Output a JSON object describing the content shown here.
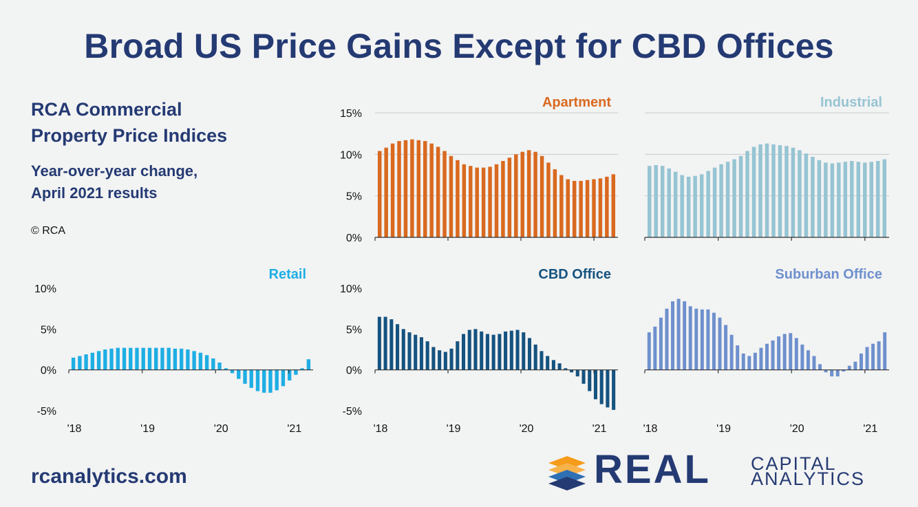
{
  "title": "Broad US Price Gains Except for CBD Offices",
  "subtitle": [
    "RCA Commercial",
    "Property Price Indices"
  ],
  "caption": [
    "Year-over-year change,",
    "April 2021 results"
  ],
  "copyright": "© RCA",
  "website": "rcanalytics.com",
  "logo": {
    "word": "REAL",
    "line1": "CAPITAL",
    "line2": "ANALYTICS",
    "colors": [
      "#f59c1a",
      "#243a73"
    ]
  },
  "chart_data": [
    {
      "type": "bar",
      "title": "Apartment",
      "color": "#d9691f",
      "x_tick_labels": [],
      "y_tick_labels": [
        "0%",
        "5%",
        "10%",
        "15%"
      ],
      "ylim": [
        0,
        15
      ],
      "grid": true,
      "values": [
        10.4,
        10.8,
        11.3,
        11.6,
        11.7,
        11.8,
        11.7,
        11.6,
        11.3,
        10.9,
        10.4,
        9.8,
        9.3,
        8.8,
        8.6,
        8.4,
        8.4,
        8.5,
        8.8,
        9.2,
        9.6,
        10.0,
        10.3,
        10.5,
        10.3,
        9.8,
        9.0,
        8.2,
        7.5,
        7.0,
        6.8,
        6.8,
        6.9,
        7.0,
        7.1,
        7.3,
        7.6
      ]
    },
    {
      "type": "bar",
      "title": "Industrial",
      "color": "#96c4d3",
      "x_tick_labels": [],
      "y_tick_labels": [],
      "ylim": [
        0,
        15
      ],
      "grid": true,
      "values": [
        8.6,
        8.7,
        8.6,
        8.3,
        7.9,
        7.5,
        7.3,
        7.4,
        7.6,
        8.0,
        8.4,
        8.8,
        9.1,
        9.4,
        9.8,
        10.4,
        10.9,
        11.2,
        11.3,
        11.2,
        11.1,
        11.0,
        10.8,
        10.5,
        10.1,
        9.7,
        9.3,
        9.0,
        8.9,
        9.0,
        9.1,
        9.2,
        9.1,
        9.0,
        9.1,
        9.2,
        9.4
      ]
    },
    {
      "type": "bar",
      "title": "Retail",
      "color": "#1eaee4",
      "x_tick_labels": [
        "'18",
        "'19",
        "'20",
        "'21"
      ],
      "y_tick_labels": [
        "-5%",
        "0%",
        "5%",
        "10%"
      ],
      "ylim": [
        -5,
        10
      ],
      "grid": false,
      "values": [
        1.5,
        1.7,
        1.9,
        2.1,
        2.3,
        2.5,
        2.6,
        2.7,
        2.7,
        2.7,
        2.7,
        2.7,
        2.7,
        2.7,
        2.7,
        2.7,
        2.6,
        2.6,
        2.5,
        2.3,
        2.1,
        1.8,
        1.4,
        0.9,
        0.2,
        -0.4,
        -1.1,
        -1.7,
        -2.2,
        -2.6,
        -2.8,
        -2.8,
        -2.5,
        -2.0,
        -1.3,
        -0.6,
        0.2,
        1.3
      ]
    },
    {
      "type": "bar",
      "title": "CBD Office",
      "color": "#155380",
      "x_tick_labels": [
        "'18",
        "'19",
        "'20",
        "'21"
      ],
      "y_tick_labels": [
        "-5%",
        "0%",
        "5%",
        "10%"
      ],
      "ylim": [
        -5,
        10
      ],
      "grid": false,
      "values": [
        6.5,
        6.5,
        6.2,
        5.6,
        5.0,
        4.6,
        4.3,
        4.0,
        3.5,
        2.8,
        2.4,
        2.2,
        2.6,
        3.5,
        4.4,
        4.9,
        5.0,
        4.7,
        4.4,
        4.3,
        4.4,
        4.7,
        4.8,
        4.9,
        4.6,
        3.9,
        3.1,
        2.3,
        1.7,
        1.2,
        0.8,
        0.2,
        -0.3,
        -0.8,
        -1.7,
        -2.6,
        -3.6,
        -4.2,
        -4.6,
        -4.9
      ]
    },
    {
      "type": "bar",
      "title": "Suburban Office",
      "color": "#6e90cd",
      "x_tick_labels": [
        "'18",
        "'19",
        "'20",
        "'21"
      ],
      "y_tick_labels": [],
      "ylim": [
        -5,
        10
      ],
      "grid": false,
      "values": [
        4.6,
        5.3,
        6.4,
        7.5,
        8.4,
        8.7,
        8.4,
        7.8,
        7.5,
        7.4,
        7.4,
        7.0,
        6.4,
        5.5,
        4.3,
        3.0,
        2.0,
        1.7,
        2.1,
        2.7,
        3.2,
        3.6,
        4.1,
        4.4,
        4.5,
        3.9,
        3.1,
        2.4,
        1.7,
        0.7,
        -0.3,
        -0.8,
        -0.8,
        -0.2,
        0.5,
        1.0,
        2.0,
        2.8,
        3.2,
        3.5,
        4.6
      ]
    }
  ]
}
